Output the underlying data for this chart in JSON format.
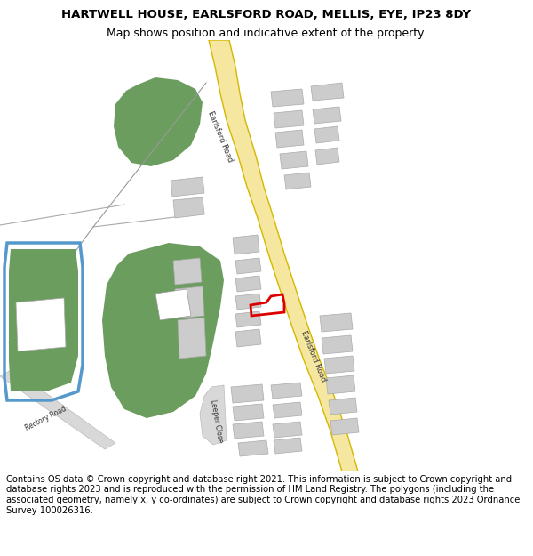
{
  "title_line1": "HARTWELL HOUSE, EARLSFORD ROAD, MELLIS, EYE, IP23 8DY",
  "title_line2": "Map shows position and indicative extent of the property.",
  "footer_text": "Contains OS data © Crown copyright and database right 2021. This information is subject to Crown copyright and database rights 2023 and is reproduced with the permission of HM Land Registry. The polygons (including the associated geometry, namely x, y co-ordinates) are subject to Crown copyright and database rights 2023 Ordnance Survey 100026316.",
  "map_bg": "#f8f8f8",
  "road_yellow_fill": "#f5e6a0",
  "road_yellow_edge": "#d4b800",
  "road_gray_fill": "#d8d8d8",
  "road_gray_edge": "#bbbbbb",
  "building_gray": "#cccccc",
  "building_edge": "#aaaaaa",
  "green_area": "#6b9e5e",
  "blue_outline_color": "#5599cc",
  "red_outline_color": "#dd0000",
  "title_fontsize": 9.5,
  "footer_fontsize": 7.2,
  "map_text_color": "#333333",
  "map_text_size": 6.5
}
